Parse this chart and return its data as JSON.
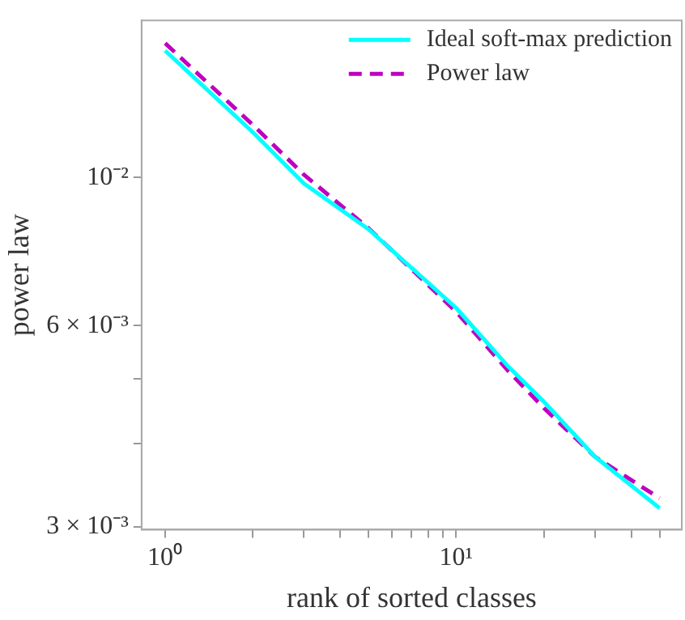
{
  "chart_data": {
    "type": "line",
    "xlabel": "rank of sorted classes",
    "ylabel": "power law",
    "log": "xy",
    "grid": false,
    "legend": "top right",
    "xlim": [
      0.83,
      59.6
    ],
    "ylim": [
      0.00297,
      0.0172
    ],
    "xticks": [
      {
        "value": 1,
        "label": "10⁰"
      },
      {
        "value": 2,
        "label": null
      },
      {
        "value": 3,
        "label": null
      },
      {
        "value": 4,
        "label": null
      },
      {
        "value": 5,
        "label": null
      },
      {
        "value": 6,
        "label": null
      },
      {
        "value": 7,
        "label": null
      },
      {
        "value": 8,
        "label": null
      },
      {
        "value": 9,
        "label": null
      },
      {
        "value": 10,
        "label": "10¹"
      },
      {
        "value": 20,
        "label": null
      },
      {
        "value": 30,
        "label": null
      },
      {
        "value": 40,
        "label": null
      },
      {
        "value": 50,
        "label": null
      }
    ],
    "yticks": [
      {
        "value": 0.003,
        "label": "3 × 10⁻³"
      },
      {
        "value": 0.004,
        "label": null
      },
      {
        "value": 0.005,
        "label": null
      },
      {
        "value": 0.006,
        "label": "6 × 10⁻³"
      },
      {
        "value": 0.01,
        "label": "10⁻²"
      }
    ],
    "series": [
      {
        "name": "Ideal soft-max prediction",
        "color": "#00ffff",
        "line_style": "solid",
        "x": [
          1,
          2,
          3,
          5,
          10,
          15,
          20,
          30,
          50
        ],
        "values": [
          0.0155,
          0.0117,
          0.0098,
          0.00837,
          0.00638,
          0.00523,
          0.00462,
          0.00382,
          0.0032
        ]
      },
      {
        "name": "Power law",
        "color": "#c000c0",
        "line_style": "dashed",
        "x": [
          1,
          2,
          3,
          5,
          10,
          15,
          20,
          30,
          50
        ],
        "values": [
          0.0159,
          0.012,
          0.0101,
          0.0084,
          0.0063,
          0.00515,
          0.00452,
          0.00382,
          0.00331
        ]
      }
    ]
  }
}
